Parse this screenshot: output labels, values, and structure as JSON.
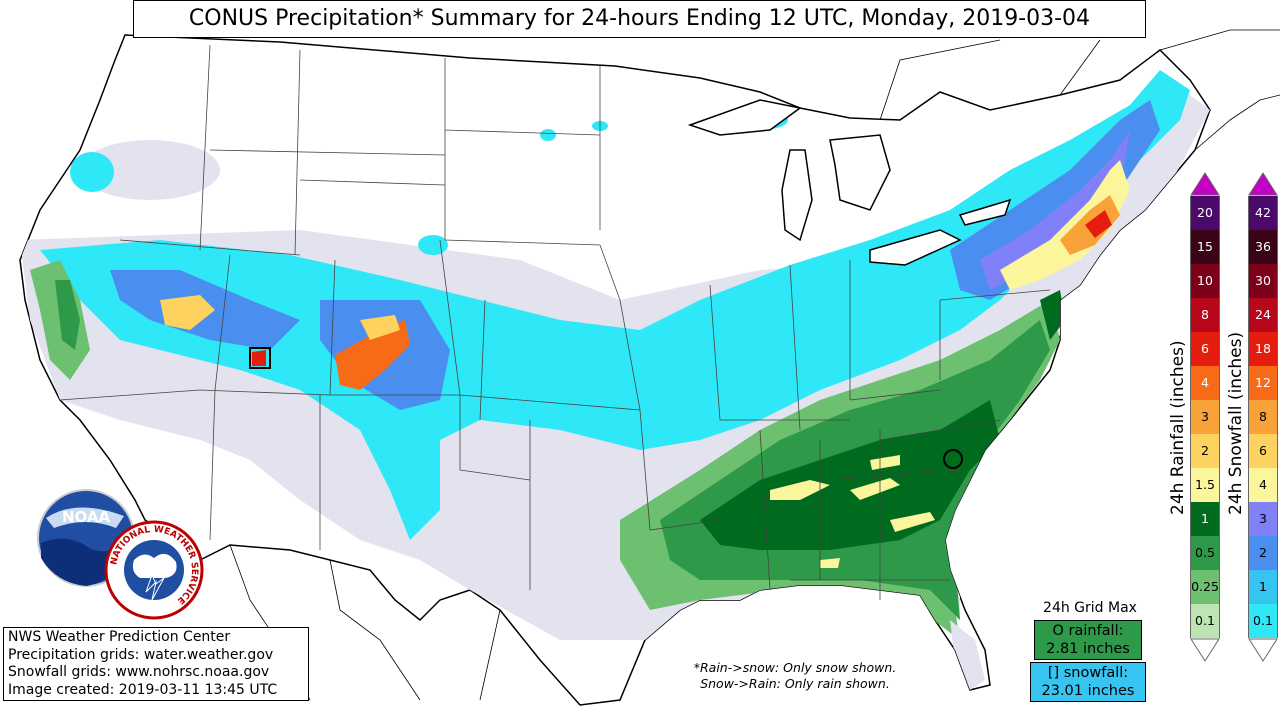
{
  "title": "CONUS Precipitation* Summary for 24-hours Ending 12 UTC, Monday, 2019-03-04",
  "info": {
    "line1": "NWS Weather Prediction Center",
    "line2": "Precipitation grids: water.weather.gov",
    "line3": "Snowfall grids: www.nohrsc.noaa.gov",
    "line4": "Image created: 2019-03-11 13:45 UTC"
  },
  "note": {
    "line1": "*Rain->snow: Only snow shown.",
    "line2": "Snow->Rain: Only rain shown."
  },
  "grid_max": {
    "title": "24h Grid Max",
    "rain_line1": "O rainfall:",
    "rain_line2": "2.81 inches",
    "snow_line1": "[] snowfall:",
    "snow_line2": "23.01 inches"
  },
  "legend": {
    "rain_label": "24h Rainfall (inches)",
    "snow_label": "24h Snowfall (inches)",
    "rain_values": [
      "20",
      "15",
      "10",
      "8",
      "6",
      "4",
      "3",
      "2",
      "1.5",
      "1",
      "0.5",
      "0.25",
      "0.1"
    ],
    "rain_colors": [
      "#4b0a6b",
      "#3a0316",
      "#7d0019",
      "#b8071a",
      "#e41d0f",
      "#f76a17",
      "#f9a23a",
      "#fed25f",
      "#fbf59b",
      "#006b1e",
      "#2e9948",
      "#6cc070",
      "#bde5b4"
    ],
    "snow_values": [
      "42",
      "36",
      "30",
      "24",
      "18",
      "12",
      "8",
      "6",
      "4",
      "3",
      "2",
      "1",
      "0.1"
    ],
    "snow_colors": [
      "#4b0a6b",
      "#3a0316",
      "#7d0019",
      "#b8071a",
      "#e41d0f",
      "#f76a17",
      "#f9a23a",
      "#fed25f",
      "#fbf59b",
      "#8080f8",
      "#4a8ff0",
      "#37c4f0",
      "#2ee8f8"
    ],
    "cap_color": "#c400c4"
  },
  "logos": {
    "noaa_text": "NOAA",
    "nws_ring_text": "NATIONAL WEATHER SERVICE"
  }
}
